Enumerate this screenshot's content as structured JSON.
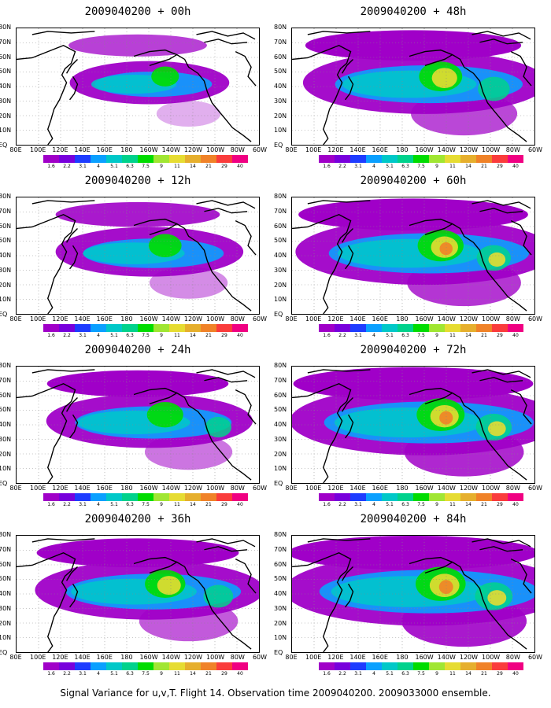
{
  "caption": "Signal Variance for u,v,T. Flight 14. Observation time 2009040200. 2009033000 ensemble.",
  "axes": {
    "lat_labels": [
      "80N",
      "70N",
      "60N",
      "50N",
      "40N",
      "30N",
      "20N",
      "10N",
      "EQ"
    ],
    "lon_labels": [
      "80E",
      "100E",
      "120E",
      "140E",
      "160E",
      "180",
      "160W",
      "140W",
      "120W",
      "100W",
      "80W",
      "60W"
    ]
  },
  "colorbar": {
    "tick_labels": [
      "1.6",
      "2.2",
      "3.1",
      "4",
      "5.1",
      "6.3",
      "7.5",
      "9",
      "11",
      "14",
      "21",
      "29",
      "40"
    ],
    "colors": [
      "#a000c8",
      "#7800dc",
      "#1e3cff",
      "#0aa0ff",
      "#00c8c8",
      "#00d28c",
      "#00dc00",
      "#a0e632",
      "#e6dc32",
      "#e6af2d",
      "#f08228",
      "#fa3c3c",
      "#f00082"
    ]
  },
  "panels": [
    {
      "title": "2009040200 + 00h",
      "intensity": 0.35
    },
    {
      "title": "2009040200 + 12h",
      "intensity": 0.5
    },
    {
      "title": "2009040200 + 24h",
      "intensity": 0.6
    },
    {
      "title": "2009040200 + 36h",
      "intensity": 0.72
    },
    {
      "title": "2009040200 + 48h",
      "intensity": 0.8
    },
    {
      "title": "2009040200 + 60h",
      "intensity": 0.88
    },
    {
      "title": "2009040200 + 72h",
      "intensity": 0.94
    },
    {
      "title": "2009040200 + 84h",
      "intensity": 1.0
    }
  ]
}
